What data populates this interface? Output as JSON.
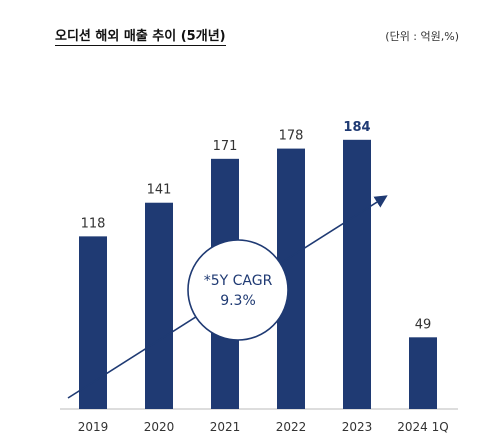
{
  "chart_data": {
    "type": "bar",
    "title": "오디션 해외 매출 추이 (5개년)",
    "unit_label": "(단위 : 억원,%)",
    "categories": [
      "2019",
      "2020",
      "2021",
      "2022",
      "2023",
      "2024 1Q"
    ],
    "values": [
      118,
      141,
      171,
      178,
      184,
      49
    ],
    "data_labels": [
      "118",
      "141",
      "171",
      "178",
      "184",
      "49"
    ],
    "highlight_index": 4,
    "annotation": {
      "line1": "*5Y CAGR",
      "line2": "9.3%"
    },
    "colors": {
      "bar": "#1f3a73",
      "highlight_label": "#1f3a73",
      "label": "#333333",
      "axis": "#bbbbbb",
      "arrow": "#1f3a73"
    },
    "ylim": [
      0,
      200
    ]
  }
}
